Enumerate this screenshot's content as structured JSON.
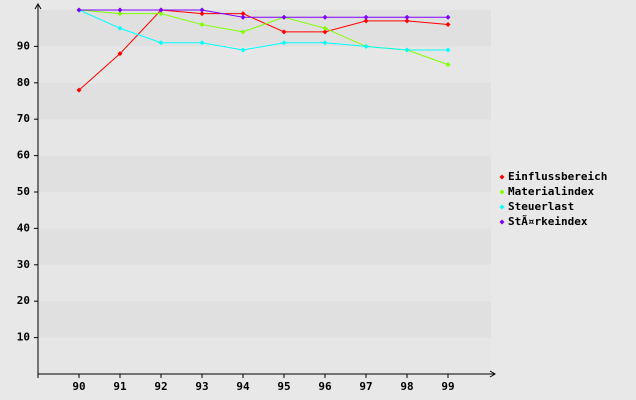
{
  "chart_data": {
    "type": "line",
    "categories": [
      "90",
      "91",
      "92",
      "93",
      "94",
      "95",
      "96",
      "97",
      "98",
      "99"
    ],
    "series": [
      {
        "name": "Einflussbereich",
        "color": "#ff0000",
        "values": [
          78,
          88,
          100,
          99,
          99,
          94,
          94,
          97,
          97,
          96
        ]
      },
      {
        "name": "Materialindex",
        "color": "#80ff00",
        "values": [
          100,
          99,
          99,
          96,
          94,
          98,
          95,
          90,
          89,
          85
        ]
      },
      {
        "name": "Steuerlast",
        "color": "#00ffff",
        "values": [
          100,
          95,
          91,
          91,
          89,
          91,
          91,
          90,
          89,
          89
        ]
      },
      {
        "name": "StÃ¤rkeindex",
        "color": "#8000ff",
        "values": [
          100,
          100,
          100,
          100,
          98,
          98,
          98,
          98,
          98,
          98
        ]
      }
    ],
    "ylim": [
      0,
      100
    ],
    "yticks": [
      10,
      20,
      30,
      40,
      50,
      60,
      70,
      80,
      90
    ],
    "grid": true,
    "legend": "right"
  }
}
